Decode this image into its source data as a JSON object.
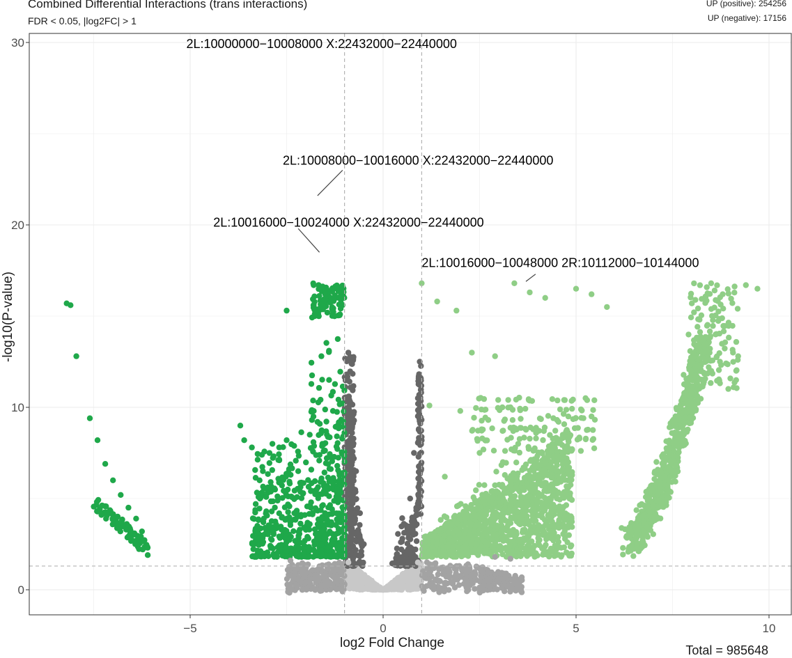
{
  "chart_data": {
    "type": "scatter",
    "title": "Combined Differential Interactions (trans interactions)",
    "subtitle": "FDR < 0.05, |log2FC| > 1",
    "xlabel": "log2 Fold Change",
    "ylabel": "-log10(P-value)",
    "xlim": [
      -9.2,
      10.6
    ],
    "ylim": [
      -1.3,
      30.7
    ],
    "xticks": [
      -5,
      0,
      5,
      10
    ],
    "yticks": [
      0,
      10,
      20,
      30
    ],
    "grid": true,
    "thresholds": {
      "log2fc": [
        -1,
        1
      ],
      "neg_log10_p": 1.3
    },
    "counts": {
      "up_positive_label": "UP (positive): 254256",
      "up_negative_label": "UP (negative): 17156",
      "total_label": "Total = 985648"
    },
    "colors": {
      "sig_negative": "#1fa84a",
      "sig_positive": "#8fce86",
      "fc_only": "#666666",
      "p_only": "#a3a3a3",
      "nonsig": "#c8c8c8",
      "threshold_line": "#b3b3b3",
      "grid": "#ebebeb"
    },
    "series": [
      {
        "group": "sig_negative",
        "points": [
          [
            -8.2,
            15.7
          ],
          [
            -8.1,
            15.6
          ],
          [
            -7.95,
            12.8
          ],
          [
            -7.6,
            9.4
          ],
          [
            -7.4,
            8.2
          ],
          [
            -7.2,
            6.9
          ],
          [
            -7.0,
            6.0
          ],
          [
            -6.8,
            5.2
          ],
          [
            -6.6,
            4.5
          ],
          [
            -6.4,
            3.9
          ],
          [
            -6.25,
            3.2
          ],
          [
            -6.1,
            1.9
          ],
          [
            -3.7,
            9.0
          ],
          [
            -3.6,
            8.2
          ],
          [
            -3.4,
            7.8
          ],
          [
            -3.2,
            6.0
          ],
          [
            -2.9,
            5.5
          ],
          [
            -2.5,
            15.3
          ],
          [
            -2.5,
            8.2
          ],
          [
            -2.2,
            6.5
          ],
          [
            -1.9,
            8.5
          ],
          [
            -1.8,
            16.7
          ],
          [
            -1.5,
            16.2
          ],
          [
            -1.2,
            16.5
          ],
          [
            -1.6,
            12.8
          ],
          [
            -1.4,
            11.5
          ],
          [
            -1.3,
            9.8
          ],
          [
            -1.7,
            9.2
          ],
          [
            -2.3,
            4.2
          ],
          [
            -1.9,
            3.6
          ],
          [
            -1.5,
            3.0
          ],
          [
            -1.2,
            2.4
          ]
        ]
      },
      {
        "group": "sig_positive",
        "points": [
          [
            1.0,
            16.8
          ],
          [
            1.4,
            15.8
          ],
          [
            1.9,
            15.3
          ],
          [
            2.3,
            13.0
          ],
          [
            2.9,
            12.8
          ],
          [
            3.4,
            16.8
          ],
          [
            3.8,
            16.3
          ],
          [
            4.2,
            16.0
          ],
          [
            5.0,
            16.5
          ],
          [
            5.4,
            16.2
          ],
          [
            5.8,
            15.5
          ],
          [
            1.2,
            10.1
          ],
          [
            2.0,
            9.8
          ],
          [
            3.3,
            10.0
          ],
          [
            4.8,
            9.5
          ],
          [
            5.4,
            9.5
          ],
          [
            1.6,
            6.2
          ],
          [
            2.5,
            7.5
          ],
          [
            3.5,
            8.0
          ],
          [
            4.5,
            8.3
          ],
          [
            2.0,
            3.5
          ],
          [
            3.0,
            4.5
          ],
          [
            4.0,
            5.8
          ],
          [
            1.4,
            2.8
          ],
          [
            2.5,
            2.2
          ],
          [
            6.4,
            3.3
          ],
          [
            6.6,
            3.8
          ],
          [
            7.0,
            4.6
          ],
          [
            7.3,
            6.2
          ],
          [
            7.6,
            8.5
          ],
          [
            7.8,
            10.5
          ],
          [
            8.0,
            12.5
          ],
          [
            8.2,
            14.8
          ],
          [
            8.5,
            16.8
          ],
          [
            8.8,
            16.2
          ],
          [
            9.2,
            12.8
          ],
          [
            9.4,
            16.7
          ],
          [
            9.7,
            16.5
          ]
        ]
      },
      {
        "group": "fc_only",
        "points": [
          [
            -0.9,
            13.0
          ],
          [
            -0.8,
            9.5
          ],
          [
            -0.7,
            6.5
          ],
          [
            -0.6,
            4.2
          ],
          [
            -0.5,
            2.5
          ],
          [
            0.5,
            2.8
          ],
          [
            0.7,
            5.0
          ],
          [
            0.8,
            7.5
          ],
          [
            0.9,
            10.5
          ],
          [
            0.95,
            12.5
          ]
        ]
      },
      {
        "group": "p_only",
        "points": [
          [
            -2.4,
            1.6
          ],
          [
            -2.0,
            1.2
          ],
          [
            -1.5,
            0.8
          ],
          [
            -1.1,
            0.5
          ],
          [
            1.2,
            0.6
          ],
          [
            1.6,
            1.0
          ],
          [
            2.2,
            1.4
          ],
          [
            2.9,
            1.8
          ],
          [
            3.3,
            1.7
          ]
        ]
      },
      {
        "group": "nonsig",
        "points": [
          [
            -0.9,
            1.5
          ],
          [
            -0.6,
            0.8
          ],
          [
            -0.3,
            0.3
          ],
          [
            0.0,
            0.05
          ],
          [
            0.3,
            0.3
          ],
          [
            0.6,
            0.8
          ],
          [
            0.9,
            1.5
          ]
        ]
      }
    ],
    "annotations": [
      {
        "text": "2L:10000000−10008000 X:22432000−22440000",
        "x": -1.55,
        "y": 28.9
      },
      {
        "text": "2L:10008000−10016000 X:22432000−22440000",
        "x": -1.7,
        "y": 21.4
      },
      {
        "text": "2L:10016000−10024000 X:22432000−22440000",
        "x": -1.65,
        "y": 18.3
      },
      {
        "text": "2L:10016000−10048000 2R:10112000−10144000",
        "x": 3.5,
        "y": 16.7
      }
    ]
  }
}
